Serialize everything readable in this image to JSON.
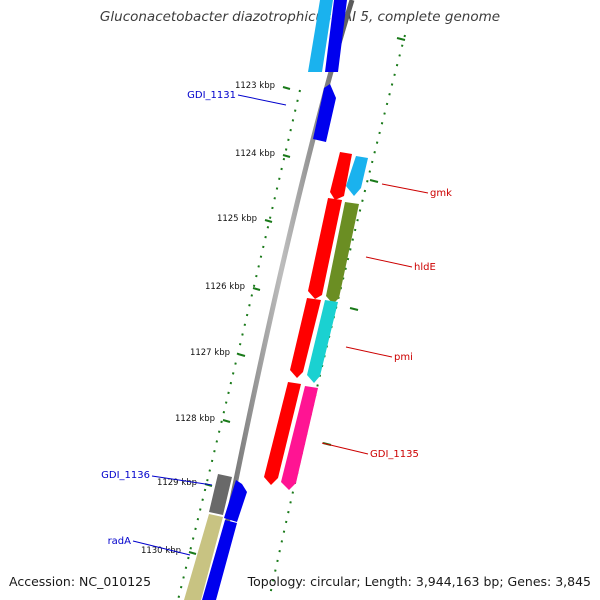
{
  "title": "Gluconacetobacter diazotrophicus PAI 5, complete genome",
  "footer": {
    "accession": "Accession: NC_010125",
    "topology": "Topology: circular; Length: 3,944,163 bp; Genes: 3,845"
  },
  "ticks": [
    {
      "label": "1123 kbp"
    },
    {
      "label": "1124 kbp"
    },
    {
      "label": "1125 kbp"
    },
    {
      "label": "1126 kbp"
    },
    {
      "label": "1127 kbp"
    },
    {
      "label": "1128 kbp"
    },
    {
      "label": "1129 kbp"
    },
    {
      "label": "1130 kbp"
    }
  ],
  "genes": [
    {
      "label": "GDI_1131",
      "strand": "minus"
    },
    {
      "label": "gmk",
      "strand": "plus"
    },
    {
      "label": "hldE",
      "strand": "plus"
    },
    {
      "label": "pmi",
      "strand": "plus"
    },
    {
      "label": "GDI_1135",
      "strand": "plus"
    },
    {
      "label": "GDI_1136",
      "strand": "minus"
    },
    {
      "label": "radA",
      "strand": "minus"
    }
  ],
  "colors": {
    "minus_label": "#0000cc",
    "plus_label": "#cc0000",
    "tick_marks": "#1a7a1a",
    "backbone": "#8a8a8a",
    "feature_red": "#ff0000",
    "feature_blue": "#0000ee",
    "feature_lightblue": "#1ab2ee",
    "feature_olive": "#6b8e23",
    "feature_cyan": "#1ad1d1",
    "feature_pink": "#ff1493",
    "feature_gray": "#696969",
    "feature_khaki": "#c8c382"
  }
}
